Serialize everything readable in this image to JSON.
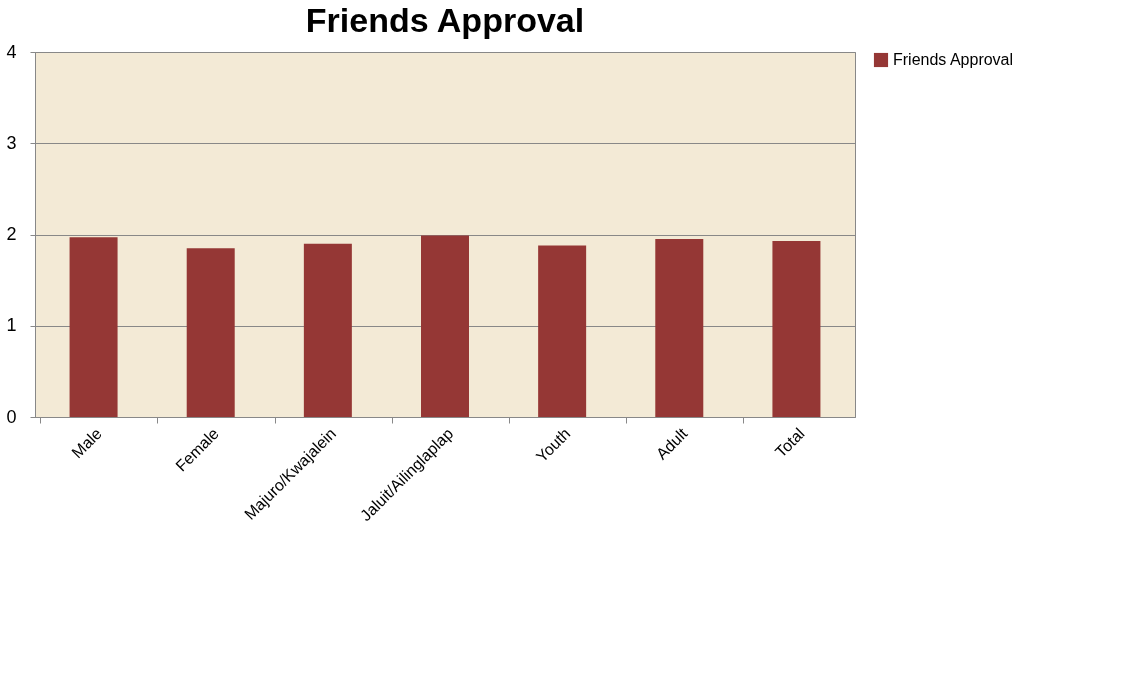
{
  "chart_data": {
    "type": "bar",
    "title": "Friends Approval",
    "categories": [
      "Male",
      "Female",
      "Majuro/Kwajalein",
      "Jaluit/Ailinglaplap",
      "Youth",
      "Adult",
      "Total"
    ],
    "series": [
      {
        "name": "Friends Approval",
        "color": "#953735",
        "values": [
          1.97,
          1.85,
          1.9,
          1.99,
          1.88,
          1.95,
          1.93
        ]
      }
    ],
    "ylim": [
      0,
      4
    ],
    "yticks": [
      0,
      1,
      2,
      3,
      4
    ],
    "grid": "y",
    "legend": "right"
  }
}
